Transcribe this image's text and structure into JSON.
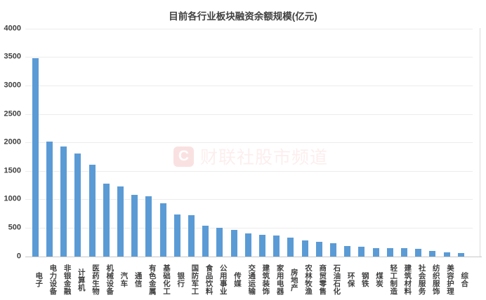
{
  "chart_data": {
    "type": "bar",
    "title": "目前各行业板块融资余额规模(亿元)",
    "xlabel": "",
    "ylabel": "",
    "categories": [
      "电子",
      "电力设备",
      "非银金融",
      "计算机",
      "医药生物",
      "机械设备",
      "汽车",
      "通信",
      "有色金属",
      "基础化工",
      "银行",
      "国防军工",
      "食品饮料",
      "公用事业",
      "传媒",
      "交通运输",
      "建筑装饰",
      "家用电器",
      "房地产",
      "农林牧渔",
      "商贸零售",
      "石油石化",
      "环保",
      "钢铁",
      "煤炭",
      "轻工制造",
      "建筑材料",
      "社会服务",
      "纺织服饰",
      "美容护理",
      "综合"
    ],
    "values": [
      3480,
      2020,
      1930,
      1800,
      1610,
      1280,
      1230,
      1080,
      1060,
      930,
      740,
      720,
      535,
      505,
      465,
      400,
      375,
      360,
      330,
      280,
      250,
      235,
      180,
      165,
      150,
      148,
      145,
      132,
      98,
      75,
      55
    ],
    "ylim": [
      0,
      4000
    ],
    "yticks": [
      0,
      500,
      1000,
      1500,
      2000,
      2500,
      3000,
      3500,
      4000
    ],
    "grid": "horizontal",
    "legend": "none",
    "bar_color": "#5B9BD5"
  },
  "watermark": {
    "logo_glyph": "C",
    "text": "财联社股市频道",
    "color": "#E25858"
  },
  "colors": {
    "background": "#FFFFFF",
    "title_text": "#404040",
    "axis_label_text": "#404040",
    "gridline": "#ECECEC",
    "axis_line": "#C9C9C9"
  }
}
